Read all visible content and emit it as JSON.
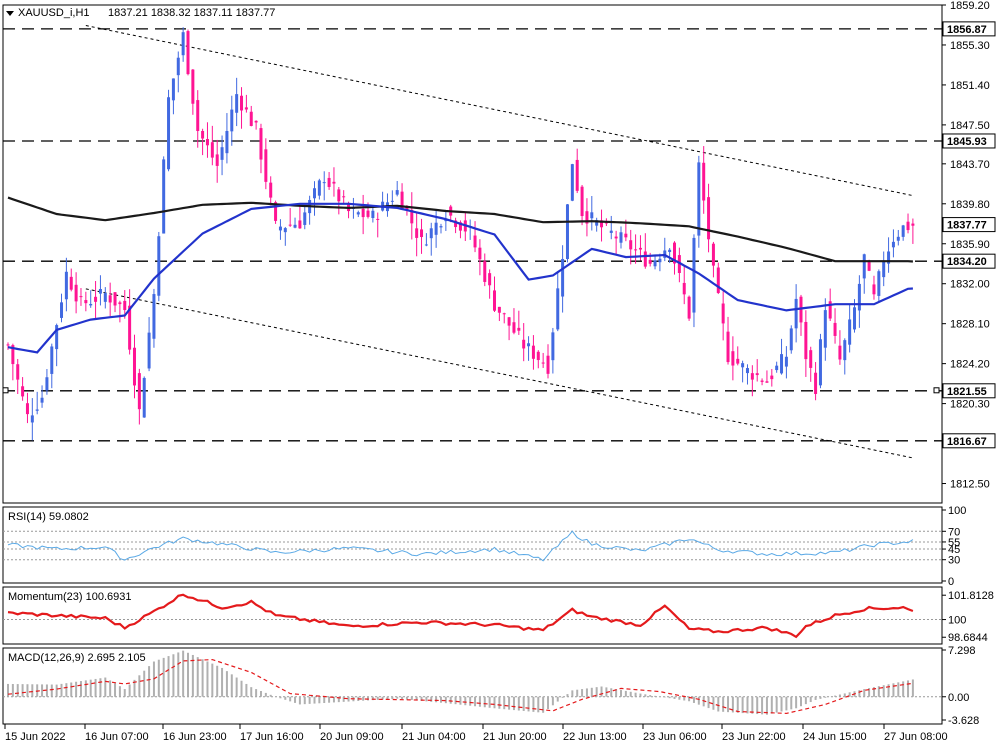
{
  "header": {
    "symbol": "XAUUSD_i,H1",
    "ohlc": "1837.21 1838.32 1837.11 1837.77"
  },
  "colors": {
    "bull": "#4169e1",
    "bear": "#ff1493",
    "ma_slow": "#1a1a1a",
    "ma_fast": "#2233cc",
    "rsi": "#5aa9e6",
    "momentum": "#e41a1c",
    "macd_hist": "#b0b0b0",
    "macd_signal": "#e41a1c",
    "level_line": "#000000"
  },
  "chart_data": [
    {
      "type": "candlestick",
      "pane": "price",
      "ylim": [
        1810.6,
        1859.2
      ],
      "y_ticks": [
        "1859.20",
        "1855.30",
        "1851.40",
        "1847.50",
        "1843.70",
        "1839.80",
        "1835.90",
        "1832.00",
        "1828.10",
        "1824.20",
        "1820.30",
        "1812.50"
      ],
      "x_labels": [
        "15 Jun 2022",
        "16 Jun 07:00",
        "16 Jun 23:00",
        "17 Jun 16:00",
        "20 Jun 09:00",
        "21 Jun 04:00",
        "21 Jun 20:00",
        "22 Jun 13:00",
        "23 Jun 06:00",
        "23 Jun 22:00",
        "24 Jun 15:00",
        "27 Jun 08:00"
      ],
      "levels": [
        "1856.87",
        "1845.93",
        "1834.20",
        "1821.55",
        "1816.67"
      ],
      "current_price": "1837.77",
      "channel": {
        "upper": [
          [
            16,
            1857.2
          ],
          [
            186,
            1840.6
          ]
        ],
        "lower": [
          [
            16,
            1831.5
          ],
          [
            186,
            1815.0
          ]
        ]
      },
      "ma_slow_anchor": [
        [
          0,
          1840.4
        ],
        [
          10,
          1838.8
        ],
        [
          20,
          1838.2
        ],
        [
          30,
          1838.9
        ],
        [
          40,
          1839.7
        ],
        [
          50,
          1839.9
        ],
        [
          60,
          1839.6
        ],
        [
          70,
          1839.4
        ],
        [
          80,
          1839.6
        ],
        [
          90,
          1839.1
        ],
        [
          100,
          1838.8
        ],
        [
          110,
          1838.0
        ],
        [
          120,
          1838.1
        ],
        [
          130,
          1837.9
        ],
        [
          140,
          1837.6
        ],
        [
          150,
          1836.6
        ],
        [
          160,
          1835.5
        ],
        [
          170,
          1834.2
        ],
        [
          178,
          1834.2
        ],
        [
          185,
          1834.2
        ]
      ],
      "ma_fast_anchor": [
        [
          0,
          1825.8
        ],
        [
          6,
          1825.3
        ],
        [
          10,
          1827.5
        ],
        [
          17,
          1828.5
        ],
        [
          24,
          1828.9
        ],
        [
          30,
          1832.5
        ],
        [
          40,
          1836.9
        ],
        [
          50,
          1839.3
        ],
        [
          60,
          1839.8
        ],
        [
          70,
          1839.8
        ],
        [
          80,
          1839.4
        ],
        [
          90,
          1838.3
        ],
        [
          100,
          1836.8
        ],
        [
          107,
          1832.4
        ],
        [
          112,
          1832.8
        ],
        [
          120,
          1835.4
        ],
        [
          127,
          1834.6
        ],
        [
          135,
          1834.8
        ],
        [
          142,
          1833.0
        ],
        [
          150,
          1830.4
        ],
        [
          160,
          1829.4
        ],
        [
          170,
          1830.0
        ],
        [
          178,
          1830.0
        ],
        [
          185,
          1831.5
        ]
      ],
      "price_path": [
        [
          0,
          1826.0
        ],
        [
          4,
          1819.0
        ],
        [
          7,
          1821.0
        ],
        [
          12,
          1833.0
        ],
        [
          15,
          1830.0
        ],
        [
          20,
          1831.0
        ],
        [
          24,
          1829.5
        ],
        [
          27,
          1819.5
        ],
        [
          30,
          1831.0
        ],
        [
          33,
          1850.0
        ],
        [
          36,
          1856.2
        ],
        [
          39,
          1847.0
        ],
        [
          43,
          1843.5
        ],
        [
          47,
          1850.5
        ],
        [
          51,
          1847.0
        ],
        [
          55,
          1837.5
        ],
        [
          60,
          1838.0
        ],
        [
          65,
          1842.5
        ],
        [
          70,
          1839.0
        ],
        [
          75,
          1838.5
        ],
        [
          80,
          1841.0
        ],
        [
          85,
          1836.0
        ],
        [
          90,
          1839.0
        ],
        [
          95,
          1837.0
        ],
        [
          100,
          1830.0
        ],
        [
          106,
          1826.0
        ],
        [
          111,
          1824.0
        ],
        [
          114,
          1835.0
        ],
        [
          116,
          1844.0
        ],
        [
          118,
          1839.0
        ],
        [
          122,
          1837.5
        ],
        [
          127,
          1836.0
        ],
        [
          132,
          1834.0
        ],
        [
          136,
          1836.0
        ],
        [
          140,
          1829.0
        ],
        [
          142,
          1843.5
        ],
        [
          145,
          1833.0
        ],
        [
          148,
          1825.0
        ],
        [
          152,
          1823.5
        ],
        [
          156,
          1822.5
        ],
        [
          160,
          1825.0
        ],
        [
          162,
          1830.5
        ],
        [
          164,
          1825.0
        ],
        [
          166,
          1822.0
        ],
        [
          168,
          1830.0
        ],
        [
          171,
          1824.5
        ],
        [
          174,
          1829.5
        ],
        [
          176,
          1834.5
        ],
        [
          178,
          1830.5
        ],
        [
          180,
          1834.5
        ],
        [
          182,
          1836.5
        ],
        [
          184,
          1837.5
        ],
        [
          186,
          1837.7
        ]
      ]
    },
    {
      "type": "line",
      "pane": "rsi",
      "title": "RSI(14) 59.0802",
      "y_ticks": [
        "100",
        "70",
        "55",
        "45",
        "30",
        "0"
      ],
      "ylim": [
        0,
        100
      ],
      "values_anchor": [
        [
          0,
          51
        ],
        [
          10,
          45
        ],
        [
          20,
          48
        ],
        [
          24,
          30
        ],
        [
          30,
          47
        ],
        [
          36,
          60
        ],
        [
          44,
          52
        ],
        [
          55,
          40
        ],
        [
          70,
          46
        ],
        [
          85,
          38
        ],
        [
          100,
          45
        ],
        [
          110,
          30
        ],
        [
          116,
          68
        ],
        [
          120,
          52
        ],
        [
          130,
          42
        ],
        [
          140,
          60
        ],
        [
          146,
          44
        ],
        [
          156,
          38
        ],
        [
          170,
          40
        ],
        [
          178,
          51
        ],
        [
          186,
          56
        ]
      ]
    },
    {
      "type": "line",
      "pane": "momentum",
      "title": "Momentum(23) 100.6931",
      "y_ticks": [
        "101.8128",
        "100",
        "98.6844"
      ],
      "ylim": [
        98.33,
        102.2
      ],
      "reference": 100,
      "values_anchor": [
        [
          0,
          100.5
        ],
        [
          10,
          100.3
        ],
        [
          20,
          100.1
        ],
        [
          24,
          99.4
        ],
        [
          30,
          100.6
        ],
        [
          36,
          101.9
        ],
        [
          44,
          100.9
        ],
        [
          50,
          101.3
        ],
        [
          55,
          100.3
        ],
        [
          70,
          99.5
        ],
        [
          85,
          99.8
        ],
        [
          100,
          99.6
        ],
        [
          110,
          99.2
        ],
        [
          116,
          100.7
        ],
        [
          120,
          100.2
        ],
        [
          130,
          99.6
        ],
        [
          135,
          101.0
        ],
        [
          140,
          99.3
        ],
        [
          146,
          99.1
        ],
        [
          156,
          99.4
        ],
        [
          162,
          98.8
        ],
        [
          164,
          99.5
        ],
        [
          170,
          100.3
        ],
        [
          176,
          100.8
        ],
        [
          184,
          100.9
        ],
        [
          186,
          100.6
        ]
      ]
    },
    {
      "type": "bar+line",
      "pane": "macd",
      "title": "MACD(12,26,9) 2.695 2.105",
      "y_ticks": [
        "7.298",
        "0.00",
        "-3.628"
      ],
      "ylim": [
        -3.628,
        7.298
      ],
      "histogram_anchor": [
        [
          0,
          2.0
        ],
        [
          10,
          1.9
        ],
        [
          20,
          3.0
        ],
        [
          24,
          1.2
        ],
        [
          30,
          5.5
        ],
        [
          36,
          7.2
        ],
        [
          44,
          4.5
        ],
        [
          50,
          1.5
        ],
        [
          55,
          0.0
        ],
        [
          60,
          -1.2
        ],
        [
          80,
          -0.3
        ],
        [
          90,
          -1.0
        ],
        [
          100,
          -1.8
        ],
        [
          110,
          -2.5
        ],
        [
          116,
          1.0
        ],
        [
          122,
          1.6
        ],
        [
          130,
          0.5
        ],
        [
          140,
          -0.7
        ],
        [
          146,
          -2.3
        ],
        [
          156,
          -2.8
        ],
        [
          162,
          -1.8
        ],
        [
          166,
          -0.5
        ],
        [
          176,
          1.2
        ],
        [
          186,
          2.7
        ]
      ],
      "signal_anchor": [
        [
          0,
          0.4
        ],
        [
          10,
          1.2
        ],
        [
          20,
          2.4
        ],
        [
          24,
          2.0
        ],
        [
          30,
          2.8
        ],
        [
          36,
          5.6
        ],
        [
          42,
          5.8
        ],
        [
          50,
          3.8
        ],
        [
          58,
          0.5
        ],
        [
          70,
          -0.3
        ],
        [
          90,
          -0.6
        ],
        [
          100,
          -1.2
        ],
        [
          112,
          -2.2
        ],
        [
          118,
          -0.4
        ],
        [
          126,
          1.3
        ],
        [
          134,
          0.8
        ],
        [
          142,
          -0.4
        ],
        [
          150,
          -2.3
        ],
        [
          160,
          -2.6
        ],
        [
          168,
          -1.2
        ],
        [
          176,
          1.0
        ],
        [
          186,
          2.1
        ]
      ]
    }
  ]
}
